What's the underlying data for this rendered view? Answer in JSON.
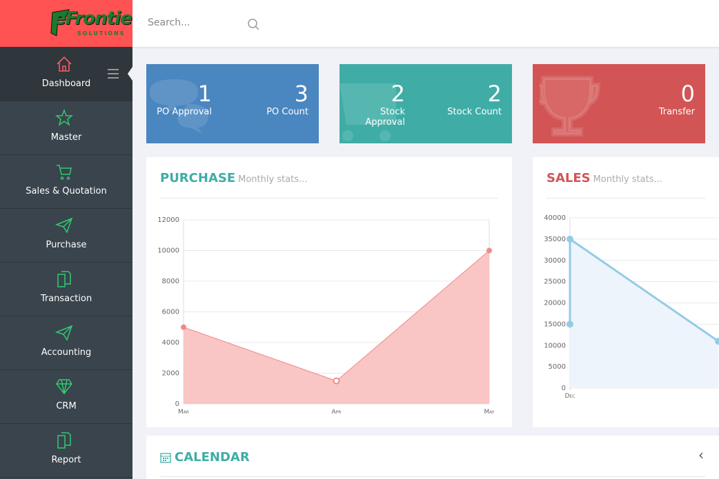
{
  "logo": {
    "name": "eFrontier",
    "tagline": "SOLUTIONS"
  },
  "search": {
    "placeholder": "Search..."
  },
  "sidebar": [
    "Dashboard",
    "Master",
    "Sales & Quotation",
    "Purchase",
    "Transaction",
    "Accounting",
    "CRM",
    "Report"
  ],
  "cards": [
    {
      "color": "#4a86c0",
      "stats": [
        {
          "value": 1,
          "label": "PO Approval"
        },
        {
          "value": 3,
          "label": "PO Count"
        }
      ]
    },
    {
      "color": "#3fada6",
      "stats": [
        {
          "value": 2,
          "label": "Stock Approval"
        },
        {
          "value": 2,
          "label": "Stock Count"
        }
      ]
    },
    {
      "color": "#d35454",
      "stats": [
        {
          "value": 0,
          "label": "Transfer"
        }
      ]
    }
  ],
  "chart_data": [
    {
      "type": "area",
      "title": "PURCHASE",
      "subtitle": "Monthly stats...",
      "title_color": "#3fada6",
      "categories": [
        "Mar",
        "Apr",
        "May"
      ],
      "values": [
        5000,
        1500,
        10000
      ],
      "color": "#f08a8a",
      "fill": "#f9c5c5",
      "ylim": [
        0,
        12000
      ],
      "yticks": [
        0,
        2000,
        4000,
        6000,
        8000,
        10000,
        12000
      ],
      "grid": true
    },
    {
      "type": "area",
      "title": "SALES",
      "subtitle": "Monthly stats...",
      "title_color": "#d35454",
      "x": [
        0,
        0,
        1
      ],
      "values": [
        15000,
        35000,
        11000
      ],
      "color": "#94cbe6",
      "fill": "#eef4fc",
      "xlim": [
        0,
        1
      ],
      "xticks": [
        {
          "value": 0,
          "label": "Dec"
        }
      ],
      "ylim": [
        0,
        40000
      ],
      "yticks": [
        0,
        5000,
        10000,
        15000,
        20000,
        25000,
        30000,
        35000,
        40000
      ],
      "grid": true
    }
  ],
  "calendar": {
    "title": "CALENDAR",
    "prev": "‹"
  }
}
